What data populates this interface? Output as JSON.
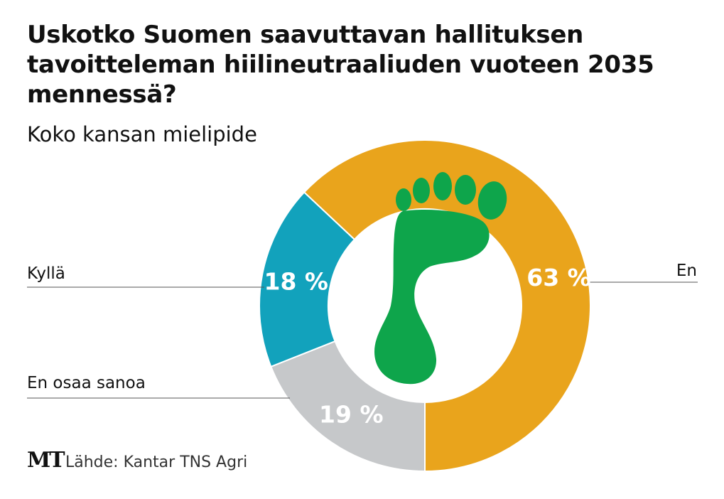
{
  "title": "Uskotko Suomen saavuttavan hallituksen tavoitteleman hiilineutraaliuden vuoteen 2035 mennessä?",
  "subtitle": "Koko kansan mielipide",
  "source": "Lähde: Kantar TNS Agri",
  "logo": "MT",
  "chart_data": {
    "type": "pie",
    "variant": "donut",
    "title": "Uskotko Suomen saavuttavan hallituksen tavoitteleman hiilineutraaliuden vuoteen 2035 mennessä?",
    "subtitle": "Koko kansan mielipide",
    "slices": [
      {
        "label": "En",
        "value": 63,
        "display": "63 %",
        "color": "#E9A41C"
      },
      {
        "label": "En osaa sanoa",
        "value": 19,
        "display": "19 %",
        "color": "#C6C8CA"
      },
      {
        "label": "Kyllä",
        "value": 18,
        "display": "18 %",
        "color": "#12A2BC"
      }
    ],
    "unit": "%"
  },
  "colors": {
    "footprint": "#0EA54B"
  }
}
